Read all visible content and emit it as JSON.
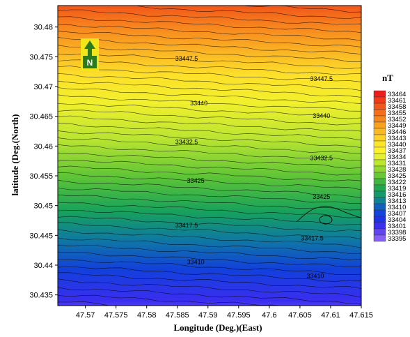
{
  "map": {
    "x_axis": {
      "title": "Longitude (Deg.)(East)",
      "range": [
        47.5655,
        47.615
      ],
      "ticks": [
        47.57,
        47.575,
        47.58,
        47.585,
        47.59,
        47.595,
        47.6,
        47.605,
        47.61,
        47.615
      ],
      "tick_labels": [
        "47.57",
        "47.575",
        "47.58",
        "47.585",
        "47.59",
        "47.595",
        "47.6",
        "47.605",
        "47.61",
        "47.615"
      ]
    },
    "y_axis": {
      "title": "latitude (Deg.(North)",
      "range": [
        30.4332,
        30.4836
      ],
      "ticks": [
        30.435,
        30.44,
        30.445,
        30.45,
        30.455,
        30.46,
        30.465,
        30.47,
        30.475,
        30.48
      ],
      "tick_labels": [
        "30.435",
        "30.44",
        "30.445",
        "30.45",
        "30.455",
        "30.46",
        "30.465",
        "30.47",
        "30.475",
        "30.48"
      ]
    },
    "contour_labels": [
      {
        "text": "33447.5",
        "lon": 47.5865,
        "lat": 30.4747
      },
      {
        "text": "33447.5",
        "lon": 47.6085,
        "lat": 30.4713
      },
      {
        "text": "33440",
        "lon": 47.5885,
        "lat": 30.4672
      },
      {
        "text": "33440",
        "lon": 47.6085,
        "lat": 30.4651
      },
      {
        "text": "33432.5",
        "lon": 47.5865,
        "lat": 30.4607
      },
      {
        "text": "33432.5",
        "lon": 47.6085,
        "lat": 30.458
      },
      {
        "text": "33425",
        "lon": 47.588,
        "lat": 30.4542
      },
      {
        "text": "33425",
        "lon": 47.6085,
        "lat": 30.4515
      },
      {
        "text": "33417.5",
        "lon": 47.5865,
        "lat": 30.4467
      },
      {
        "text": "33417.5",
        "lon": 47.607,
        "lat": 30.4445
      },
      {
        "text": "33410",
        "lon": 47.588,
        "lat": 30.4405
      },
      {
        "text": "33410",
        "lon": 47.6075,
        "lat": 30.4382
      }
    ],
    "north_arrow": {
      "letter": "N"
    },
    "color_bar": {
      "unit": "nT",
      "levels": [
        "33464",
        "33461",
        "33458",
        "33455",
        "33452",
        "33449",
        "33446",
        "33443",
        "33440",
        "33437",
        "33434",
        "33431",
        "33428",
        "33425",
        "33422",
        "33419",
        "33416",
        "33413",
        "33410",
        "33407",
        "33404",
        "33401",
        "33398",
        "33395"
      ],
      "colors": [
        "#ee1c1c",
        "#f03a1a",
        "#f2561a",
        "#f46e1c",
        "#f6861e",
        "#f8a020",
        "#fab824",
        "#fcd028",
        "#fde62a",
        "#fef22e",
        "#e4f030",
        "#bce630",
        "#92d830",
        "#6ac834",
        "#3eb640",
        "#22a650",
        "#129a6a",
        "#108292",
        "#1060c0",
        "#1444dc",
        "#2032e8",
        "#3c30ee",
        "#6244f2",
        "#8660f4"
      ]
    }
  }
}
